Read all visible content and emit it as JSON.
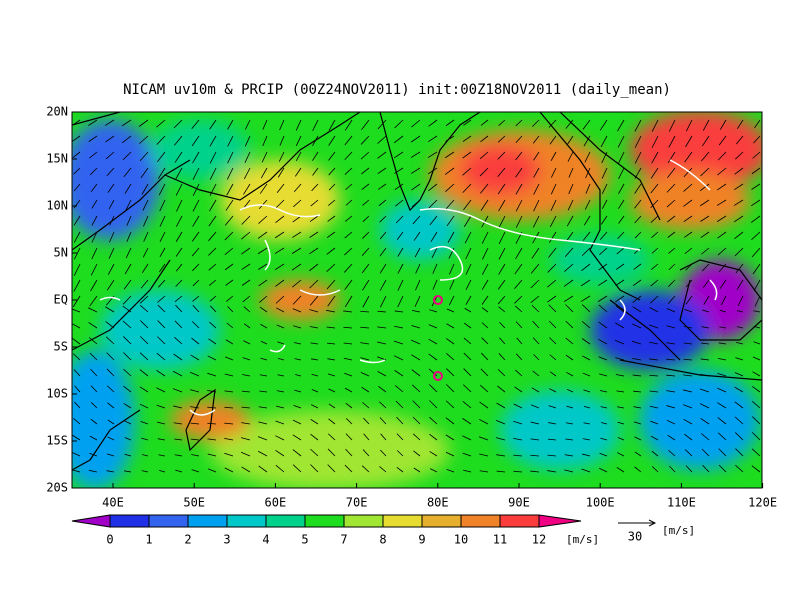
{
  "header": {
    "title": "NICAM uv10m & PRCIP (00Z24NOV2011) init:00Z18NOV2011 (daily_mean)"
  },
  "axes": {
    "lat_labels": [
      "20N",
      "15N",
      "10N",
      "5N",
      "EQ",
      "5S",
      "10S",
      "15S",
      "20S"
    ],
    "lon_labels": [
      "40E",
      "50E",
      "60E",
      "70E",
      "80E",
      "90E",
      "100E",
      "110E",
      "120E"
    ]
  },
  "colorbar": {
    "labels": [
      0,
      1,
      2,
      3,
      4,
      5,
      7,
      8,
      9,
      10,
      11,
      12
    ],
    "colors": [
      "#a000c8",
      "#2030e6",
      "#3264f0",
      "#00a0f0",
      "#00c8c8",
      "#00d28c",
      "#1edc1e",
      "#a0e632",
      "#e6dc32",
      "#e6af2d",
      "#f08228",
      "#fa3c3c",
      "#f00082"
    ],
    "unit": "[m/s]"
  },
  "reference_vector": {
    "value": 30,
    "unit": "[m/s]"
  }
}
